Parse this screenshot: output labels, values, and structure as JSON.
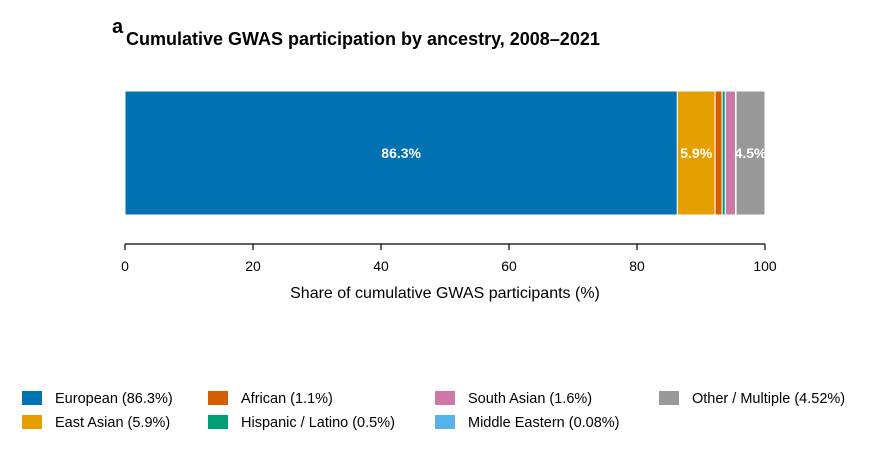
{
  "chart_data": {
    "type": "bar",
    "orientation": "horizontal-stacked",
    "panel_letter": "a",
    "title": "Cumulative GWAS participation by ancestry, 2008–2021",
    "xlabel": "Share of cumulative GWAS participants (%)",
    "ylabel": "",
    "xlim": [
      0,
      100
    ],
    "xticks": [
      "0",
      "20",
      "40",
      "60",
      "80",
      "100"
    ],
    "grid": false,
    "legend_position": "bottom",
    "series": [
      {
        "name": "European",
        "value": 86.3,
        "color": "#0072b2",
        "legend": "European (86.3%)",
        "label": "86.3%"
      },
      {
        "name": "East Asian",
        "value": 5.9,
        "color": "#e69f00",
        "legend": "East Asian (5.9%)",
        "label": "5.9%"
      },
      {
        "name": "African",
        "value": 1.1,
        "color": "#d55e00",
        "legend": "African (1.1%)",
        "label": ""
      },
      {
        "name": "Hispanic / Latino",
        "value": 0.5,
        "color": "#009e73",
        "legend": "Hispanic / Latino (0.5%)",
        "label": ""
      },
      {
        "name": "South Asian",
        "value": 1.6,
        "color": "#cc79a7",
        "legend": "South Asian (1.6%)",
        "label": ""
      },
      {
        "name": "Middle Eastern",
        "value": 0.08,
        "color": "#56b4e9",
        "legend": "Middle Eastern (0.08%)",
        "label": ""
      },
      {
        "name": "Other / Multiple",
        "value": 4.52,
        "color": "#999999",
        "legend": "Other / Multiple (4.52%)",
        "label": "4.5%"
      }
    ]
  }
}
